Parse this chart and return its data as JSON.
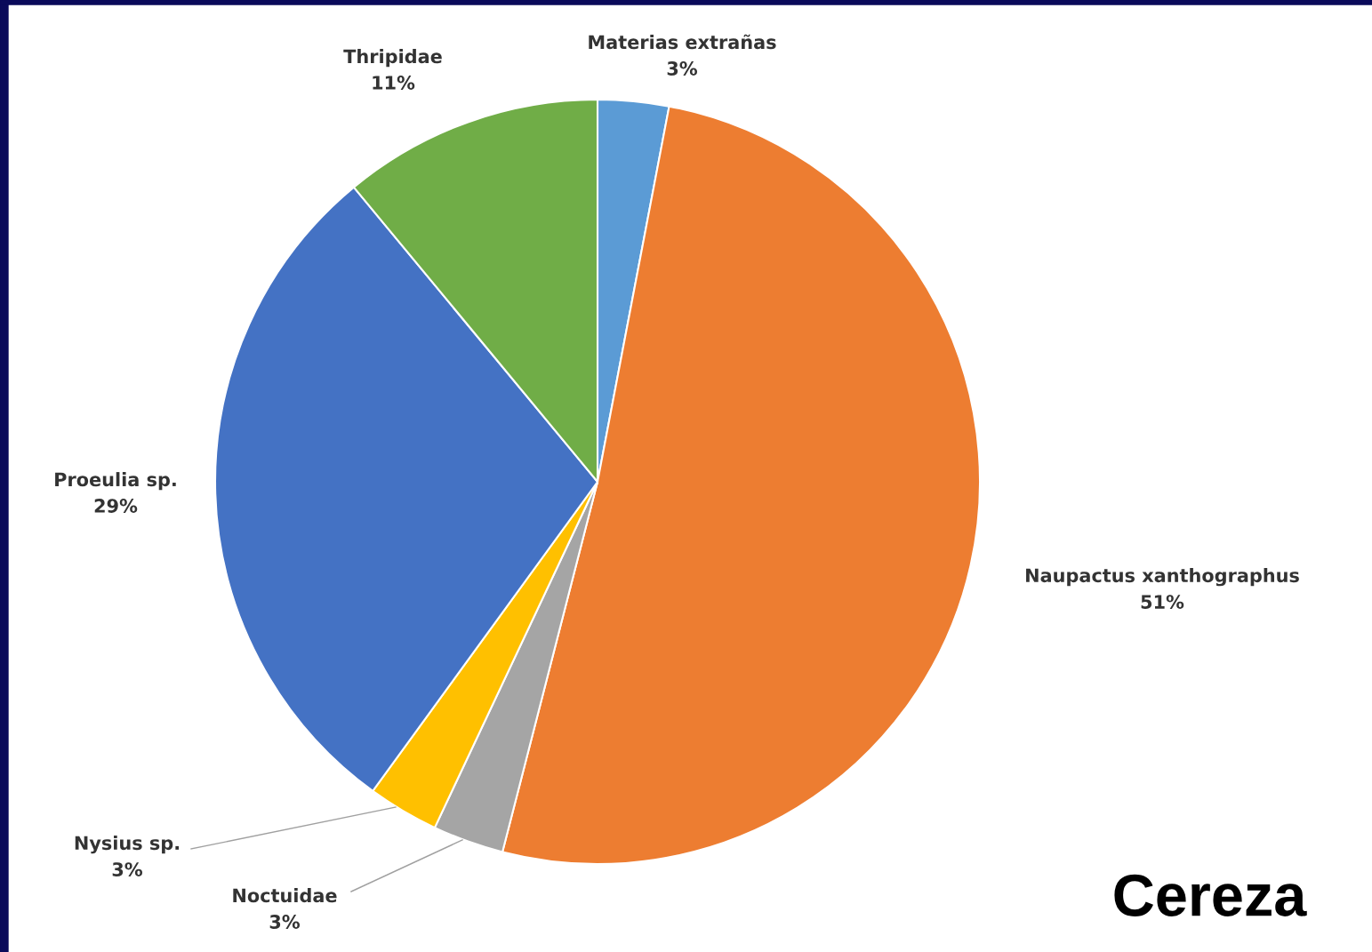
{
  "chart_data": {
    "type": "pie",
    "categories": [
      "Materias extrañas",
      "Naupactus xanthographus",
      "Noctuidae",
      "Nysius sp.",
      "Proeulia sp.",
      "Thripidae"
    ],
    "values": [
      3,
      51,
      3,
      3,
      29,
      11
    ],
    "value_labels": [
      "3%",
      "51%",
      "3%",
      "3%",
      "29%",
      "11%"
    ],
    "colors": [
      "#5b9bd5",
      "#ed7d31",
      "#a5a5a5",
      "#ffc000",
      "#4472c4",
      "#70ad47"
    ],
    "annotations": [
      "Cereza"
    ]
  }
}
